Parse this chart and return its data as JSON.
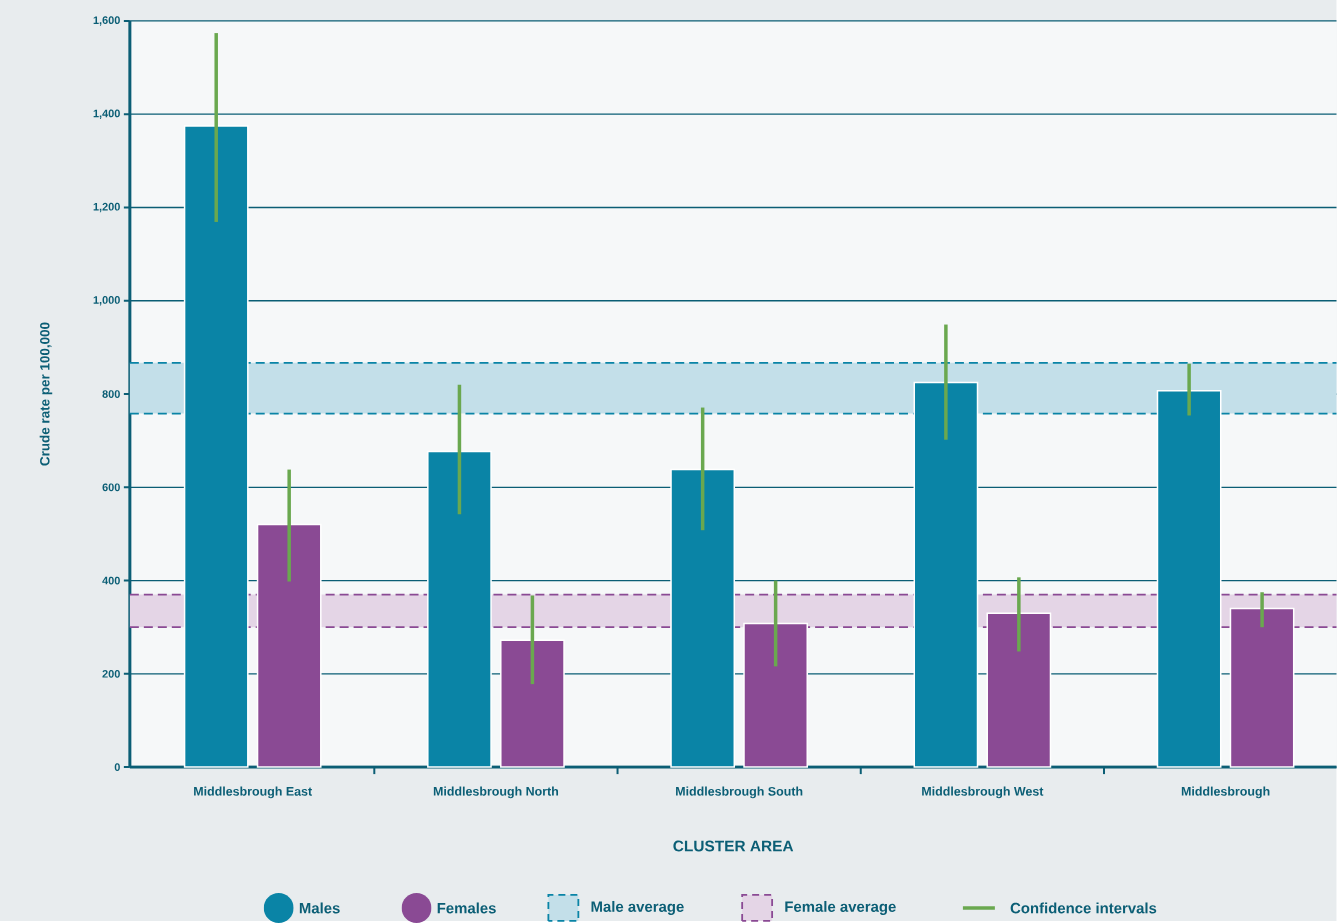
{
  "chart_data": {
    "type": "bar",
    "xlabel": "CLUSTER AREA",
    "ylabel": "Crude rate per 100,000",
    "categories": [
      "Middlesbrough East",
      "Middlesbrough North",
      "Middlesbrough South",
      "Middlesbrough West",
      "Middlesbrough"
    ],
    "series": [
      {
        "name": "Males",
        "color": "#0a84a6",
        "values": [
          1375,
          677,
          638,
          825,
          807
        ],
        "errors": [
          [
            1169,
            1574
          ],
          [
            542,
            820
          ],
          [
            508,
            771
          ],
          [
            702,
            949
          ],
          [
            754,
            865
          ]
        ]
      },
      {
        "name": "Females",
        "color": "#8a4a94",
        "values": [
          520,
          272,
          308,
          330,
          340
        ],
        "errors": [
          [
            398,
            638
          ],
          [
            178,
            368
          ],
          [
            216,
            400
          ],
          [
            248,
            407
          ],
          [
            300,
            375
          ]
        ]
      }
    ],
    "bands": [
      {
        "axis": "y",
        "from": 758,
        "to": 867,
        "label": "Male average",
        "color": "#c3dfe9"
      },
      {
        "axis": "y",
        "from": 300,
        "to": 370,
        "label": "Female average",
        "color": "#e4d5e6"
      }
    ],
    "ref_lines": [
      {
        "axis": "y",
        "value": 867,
        "color": "#0a84a6",
        "line_style": "dashed"
      },
      {
        "axis": "y",
        "value": 758,
        "color": "#0a84a6",
        "line_style": "dashed"
      },
      {
        "axis": "y",
        "value": 370,
        "color": "#8a4a94",
        "line_style": "dashed"
      },
      {
        "axis": "y",
        "value": 300,
        "color": "#8a4a94",
        "line_style": "dashed"
      }
    ],
    "annotations": [
      "Confidence intervals"
    ],
    "ylim": [
      0,
      1600
    ],
    "yticks": [
      {
        "value": 0,
        "label": "0"
      },
      {
        "value": 200,
        "label": "200"
      },
      {
        "value": 400,
        "label": "400"
      },
      {
        "value": 600,
        "label": "600"
      },
      {
        "value": 800,
        "label": "800"
      },
      {
        "value": 1000,
        "label": "1,000"
      },
      {
        "value": 1200,
        "label": "1,200"
      },
      {
        "value": 1400,
        "label": "1,400"
      },
      {
        "value": 1600,
        "label": "1,600"
      }
    ],
    "grid": "y",
    "legend": "bottom"
  }
}
